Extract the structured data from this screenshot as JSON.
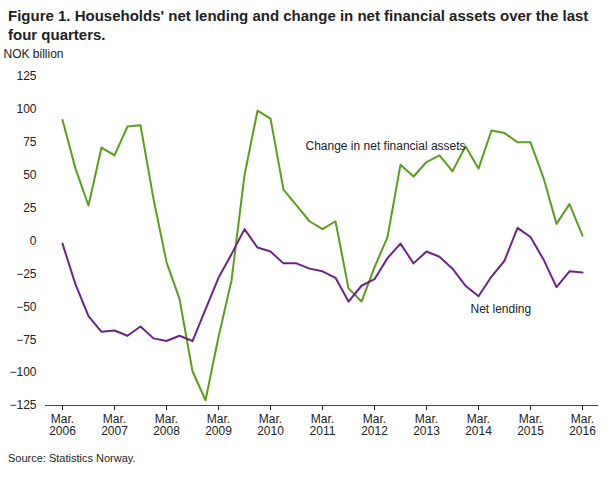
{
  "chart_data": {
    "type": "line",
    "title": "Figure 1. Households' net lending and change in net financial assets over the last four quarters.",
    "y_label": "NOK billion",
    "caption": "Source: Statistics Norway.",
    "categories": [
      "Mar. 2006",
      null,
      null,
      null,
      "Mar. 2007",
      null,
      null,
      null,
      "Mar. 2008",
      null,
      null,
      null,
      "Mar. 2009",
      null,
      null,
      null,
      "Mar. 2010",
      null,
      null,
      null,
      "Mar. 2011",
      null,
      null,
      null,
      "Mar. 2012",
      null,
      null,
      null,
      "Mar. 2013",
      null,
      null,
      null,
      "Mar. 2014",
      null,
      null,
      null,
      "Mar. 2015",
      null,
      null,
      null,
      "Mar. 2016"
    ],
    "series": [
      {
        "name": "Change in net financial assets",
        "color": "#5e9c1f",
        "values": [
          92,
          55,
          27,
          71,
          65,
          87,
          88,
          32,
          -16,
          -44,
          -99,
          -121,
          -73,
          -30,
          50,
          99,
          93,
          39,
          27,
          15,
          9,
          15,
          -36,
          -46,
          -20,
          3,
          58,
          49,
          60,
          65,
          53,
          72,
          55,
          84,
          82,
          75,
          75,
          48,
          13,
          28,
          4
        ]
      },
      {
        "name": "Net lending",
        "color": "#6b2585",
        "values": [
          -2,
          -33,
          -57,
          -69,
          -68,
          -72,
          -65,
          -74,
          -76,
          -72,
          -76,
          -52,
          -28,
          -10,
          9,
          -5,
          -8,
          -17,
          -17,
          -21,
          -23,
          -28,
          -46,
          -34,
          -29,
          -13,
          -2,
          -17,
          -8,
          -12,
          -21,
          -34,
          -42,
          -27,
          -15,
          10,
          3,
          -14,
          -35,
          -23,
          -24
        ]
      }
    ],
    "ylim": [
      -125,
      125
    ],
    "yticks": [
      -125,
      -100,
      -75,
      -50,
      -25,
      0,
      25,
      50,
      75,
      100,
      125
    ],
    "grid": false,
    "legend": false
  }
}
